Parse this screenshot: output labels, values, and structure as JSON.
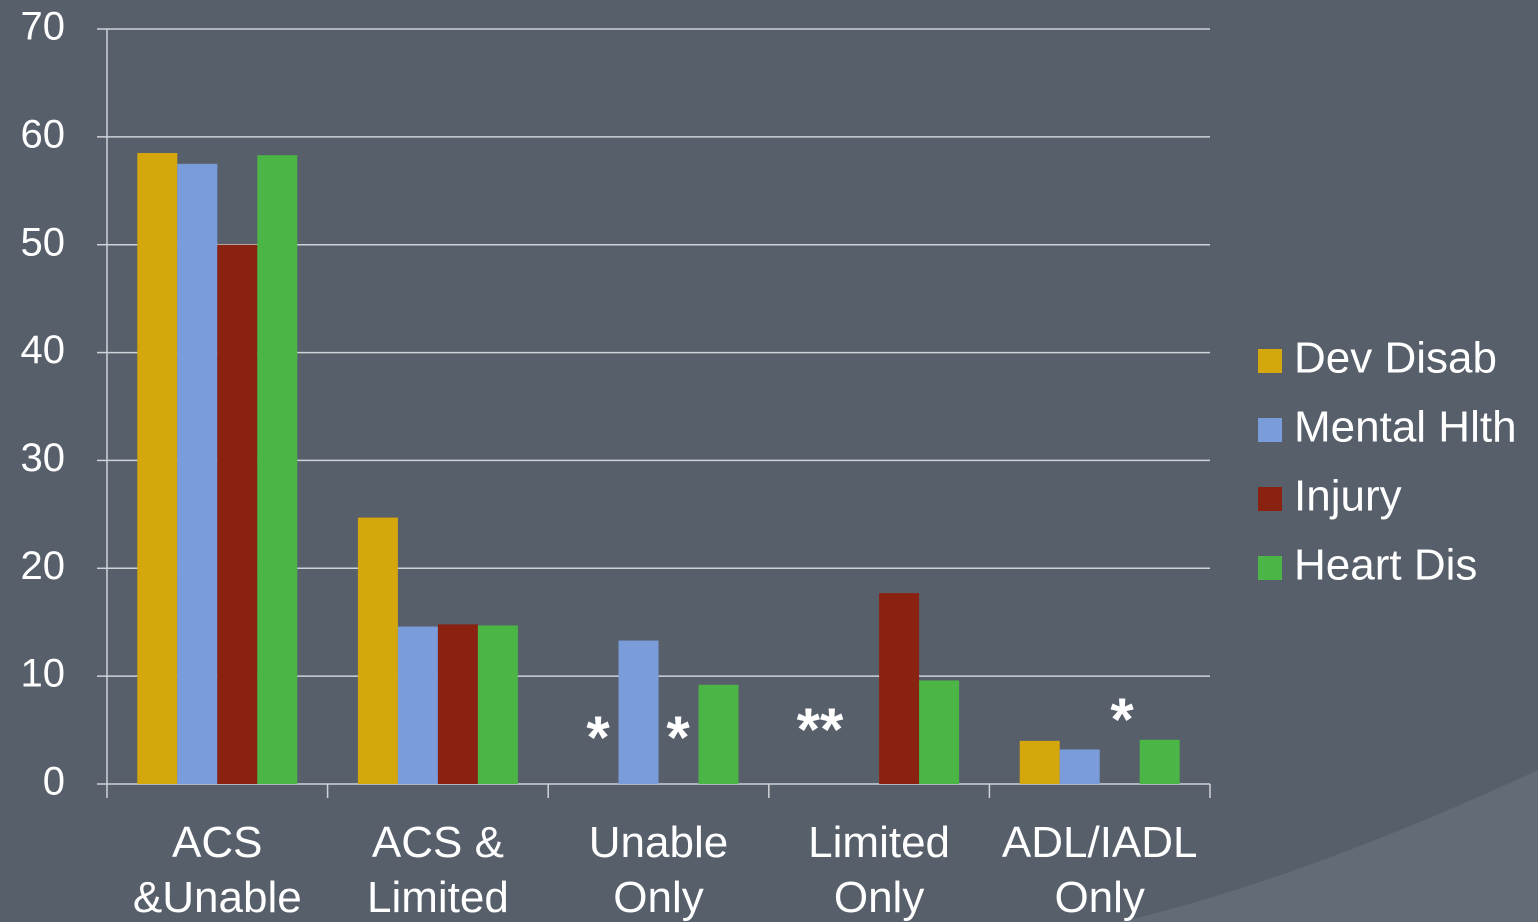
{
  "chart_data": {
    "type": "bar",
    "categories": [
      [
        "ACS",
        "&Unable"
      ],
      [
        "ACS &",
        "Limited"
      ],
      [
        "Unable",
        "Only"
      ],
      [
        "Limited",
        "Only"
      ],
      [
        "ADL/IADL",
        "Only"
      ]
    ],
    "series": [
      {
        "name": "Dev Disab",
        "color": "#d4a80c",
        "values": [
          58.5,
          24.7,
          null,
          null,
          4.0
        ]
      },
      {
        "name": "Mental Hlth",
        "color": "#7b9cdb",
        "values": [
          57.5,
          14.6,
          13.3,
          null,
          3.2
        ]
      },
      {
        "name": "Injury",
        "color": "#8a2211",
        "values": [
          50,
          14.8,
          null,
          17.7,
          null
        ]
      },
      {
        "name": "Heart Dis",
        "color": "#4bb545",
        "values": [
          58.3,
          14.7,
          9.2,
          9.6,
          4.1
        ]
      }
    ],
    "ylim": [
      0,
      70
    ],
    "yticks": [
      0,
      10,
      20,
      30,
      40,
      50,
      60,
      70
    ],
    "grid": true,
    "legend": "right",
    "annotations": [
      "*",
      "*",
      "**",
      "*"
    ]
  }
}
